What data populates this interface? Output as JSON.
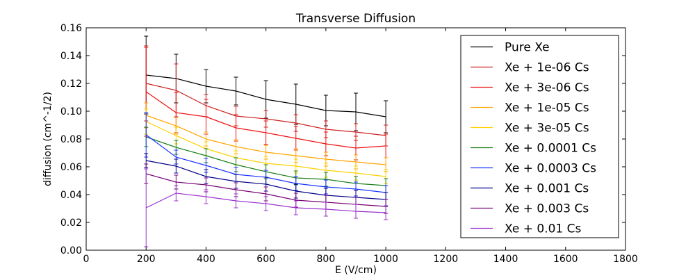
{
  "chart_data": {
    "type": "line",
    "title": "Transverse Diffusion",
    "xlabel": "E (V/cm)",
    "ylabel": "diffusion (cm^-1/2)",
    "xlim": [
      0,
      1800
    ],
    "ylim": [
      0,
      0.16
    ],
    "xticks": [
      0,
      200,
      400,
      600,
      800,
      1000,
      1200,
      1400,
      1600,
      1800
    ],
    "yticks": [
      0.0,
      0.02,
      0.04,
      0.06,
      0.08,
      0.1,
      0.12,
      0.14,
      0.16
    ],
    "xtick_labels": [
      "0",
      "200",
      "400",
      "600",
      "800",
      "1000",
      "1200",
      "1400",
      "1600",
      "1800"
    ],
    "ytick_labels": [
      "0.00",
      "0.02",
      "0.04",
      "0.06",
      "0.08",
      "0.10",
      "0.12",
      "0.14",
      "0.16"
    ],
    "legend_position": "top-right",
    "grid": false,
    "x": [
      200,
      300,
      400,
      500,
      600,
      700,
      800,
      900,
      1000
    ],
    "series": [
      {
        "name": "Pure Xe",
        "color": "#000000",
        "values": [
          0.126,
          0.1235,
          0.118,
          0.1145,
          0.1085,
          0.105,
          0.1005,
          0.0995,
          0.096
        ],
        "errors": [
          0.028,
          0.0175,
          0.012,
          0.01,
          0.0135,
          0.0145,
          0.011,
          0.0135,
          0.0115
        ]
      },
      {
        "name": "Xe + 1e-06 Cs",
        "color": "#cc2222",
        "values": [
          0.12,
          0.115,
          0.104,
          0.0965,
          0.0945,
          0.0915,
          0.087,
          0.085,
          0.0825
        ],
        "errors": [
          0.027,
          0.019,
          0.008,
          0.007,
          0.006,
          0.006,
          0.006,
          0.006,
          0.0075
        ]
      },
      {
        "name": "Xe + 3e-06 Cs",
        "color": "#ee1111",
        "values": [
          0.114,
          0.099,
          0.096,
          0.088,
          0.0845,
          0.0805,
          0.0765,
          0.0735,
          0.075
        ],
        "errors": [
          0.032,
          0.0145,
          0.0125,
          0.0095,
          0.0085,
          0.0085,
          0.0085,
          0.0085,
          0.0085
        ]
      },
      {
        "name": "Xe + 1e-05 Cs",
        "color": "#ffa500",
        "values": [
          0.097,
          0.0895,
          0.08,
          0.0745,
          0.0705,
          0.068,
          0.0655,
          0.0635,
          0.0615
        ],
        "errors": [
          0.009,
          0.006,
          0.005,
          0.005,
          0.005,
          0.005,
          0.005,
          0.005,
          0.005
        ]
      },
      {
        "name": "Xe + 3e-05 Cs",
        "color": "#ffd000",
        "values": [
          0.0925,
          0.0825,
          0.073,
          0.0665,
          0.0625,
          0.0605,
          0.0575,
          0.0555,
          0.053
        ],
        "errors": [
          0.009,
          0.006,
          0.005,
          0.005,
          0.005,
          0.005,
          0.005,
          0.005,
          0.005
        ]
      },
      {
        "name": "Xe + 0.0001 Cs",
        "color": "#1a7f1a",
        "values": [
          0.0815,
          0.074,
          0.068,
          0.0615,
          0.0565,
          0.052,
          0.051,
          0.048,
          0.0465
        ],
        "errors": [
          0.007,
          0.005,
          0.005,
          0.005,
          0.005,
          0.005,
          0.005,
          0.005,
          0.005
        ]
      },
      {
        "name": "Xe + 0.0003 Cs",
        "color": "#1a33ff",
        "values": [
          0.083,
          0.067,
          0.061,
          0.0545,
          0.0525,
          0.048,
          0.0455,
          0.044,
          0.0415
        ],
        "errors": [
          0.016,
          0.005,
          0.005,
          0.005,
          0.005,
          0.005,
          0.005,
          0.005,
          0.005
        ]
      },
      {
        "name": "Xe + 0.001 Cs",
        "color": "#000088",
        "values": [
          0.0645,
          0.0605,
          0.053,
          0.0495,
          0.0475,
          0.0425,
          0.0395,
          0.038,
          0.0365
        ],
        "errors": [
          0.005,
          0.005,
          0.005,
          0.005,
          0.005,
          0.005,
          0.005,
          0.005,
          0.005
        ]
      },
      {
        "name": "Xe + 0.003 Cs",
        "color": "#770077",
        "values": [
          0.055,
          0.049,
          0.047,
          0.0435,
          0.0405,
          0.036,
          0.0345,
          0.033,
          0.0315
        ],
        "errors": [
          0.007,
          0.005,
          0.005,
          0.005,
          0.005,
          0.005,
          0.005,
          0.005,
          0.005
        ]
      },
      {
        "name": "Xe + 0.01 Cs",
        "color": "#9933cc",
        "values": [
          0.0305,
          0.041,
          0.0385,
          0.0355,
          0.0335,
          0.0305,
          0.0295,
          0.028,
          0.027
        ],
        "errors": [
          0.028,
          0.0055,
          0.005,
          0.005,
          0.005,
          0.005,
          0.005,
          0.005,
          0.005
        ]
      }
    ]
  }
}
